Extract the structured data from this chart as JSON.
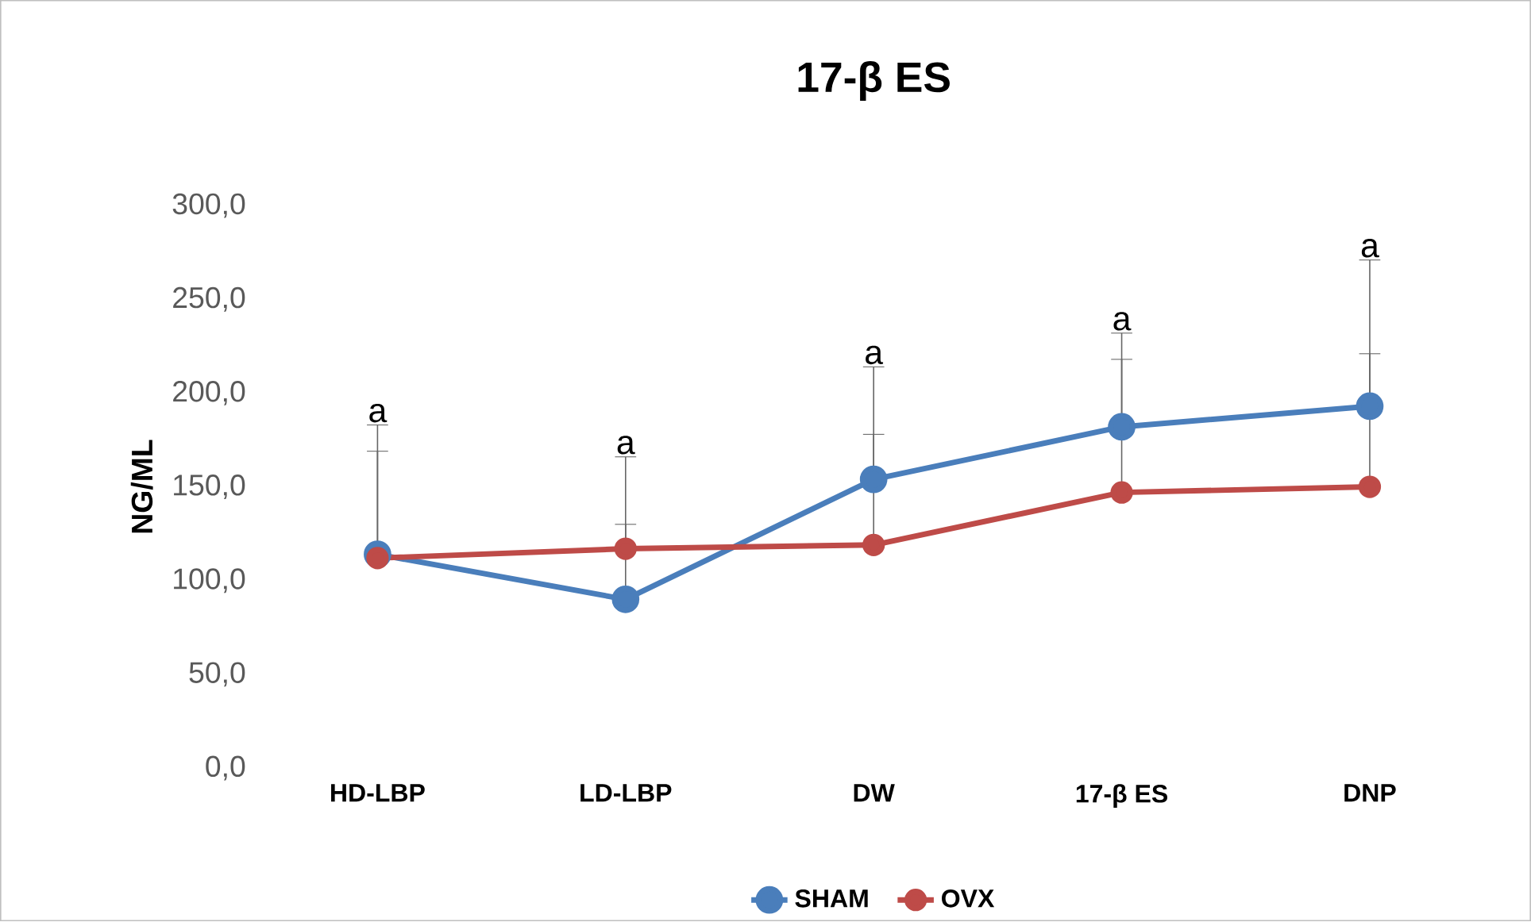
{
  "chart_data": {
    "type": "line",
    "title": "17-β ES",
    "ylabel": "NG/ML",
    "categories": [
      "HD-LBP",
      "LD-LBP",
      "DW",
      "17-β ES",
      "DNP"
    ],
    "series": [
      {
        "name": "SHAM",
        "color": "#4a7ebb",
        "values": [
          114,
          90,
          154,
          182,
          193
        ],
        "errors": [
          [
            114,
            183
          ],
          [
            90,
            166
          ],
          [
            154,
            214
          ],
          [
            182,
            232
          ],
          [
            193,
            271
          ]
        ]
      },
      {
        "name": "OVX",
        "color": "#be4b48",
        "values": [
          112,
          117,
          119,
          147,
          150
        ],
        "errors": [
          [
            112,
            169
          ],
          [
            117,
            130
          ],
          [
            119,
            178
          ],
          [
            147,
            218
          ],
          [
            150,
            221
          ]
        ]
      }
    ],
    "ylim": [
      0,
      300
    ],
    "yticks": [
      {
        "value": 0,
        "label": "0,0"
      },
      {
        "value": 50,
        "label": "50,0"
      },
      {
        "value": 100,
        "label": "100,0"
      },
      {
        "value": 150,
        "label": "150,0"
      },
      {
        "value": 200,
        "label": "200,0"
      },
      {
        "value": 250,
        "label": "250,0"
      },
      {
        "value": 300,
        "label": "300,0"
      }
    ],
    "annotations": [
      {
        "text": "a",
        "x": "HD-LBP",
        "y": 183
      },
      {
        "text": "a",
        "x": "LD-LBP",
        "y": 166
      },
      {
        "text": "a",
        "x": "DW",
        "y": 214
      },
      {
        "text": "a",
        "x": "17-β ES",
        "y": 232
      },
      {
        "text": "a",
        "x": "DNP",
        "y": 271
      }
    ],
    "legend": "bottom",
    "marker": "circle",
    "line_style": "solid",
    "grid": false
  }
}
